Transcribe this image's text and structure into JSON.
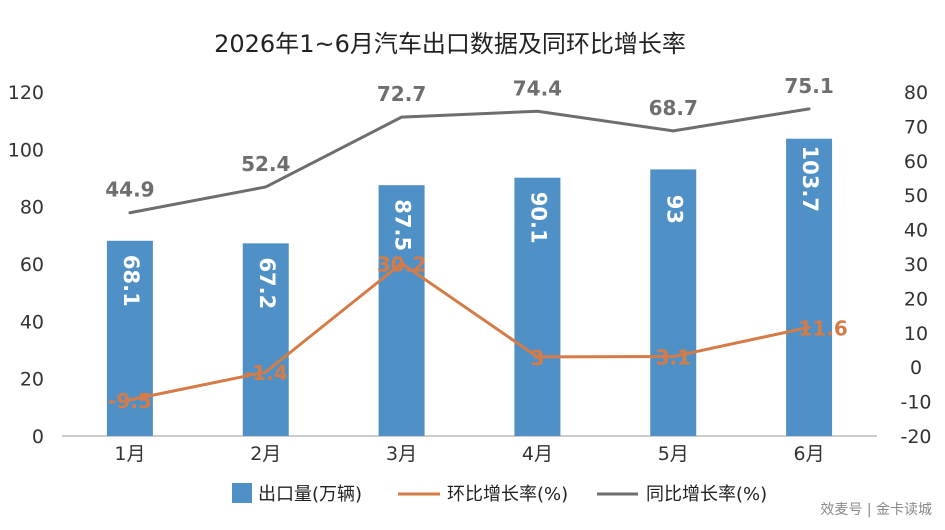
{
  "chart_data": {
    "type": "bar",
    "title": "2026年1~6月汽车出口数据及同环比增长率",
    "categories": [
      "1月",
      "2月",
      "3月",
      "4月",
      "5月",
      "6月"
    ],
    "series": [
      {
        "name": "出口量(万辆)",
        "type": "bar",
        "axis": "left",
        "color": "#4f91c6",
        "values": [
          68.1,
          67.2,
          87.5,
          90.1,
          93,
          103.7
        ],
        "labels": [
          "68.1",
          "67.2",
          "87.5",
          "90.1",
          "93",
          "103.7"
        ]
      },
      {
        "name": "环比增长率(%)",
        "type": "line",
        "axis": "right",
        "color": "#d57b47",
        "values": [
          -9.5,
          -1.4,
          30.2,
          3,
          3.1,
          11.6
        ],
        "labels": [
          "-9.5",
          "-1.4",
          "30.2",
          "3",
          "3.1",
          "11.6"
        ]
      },
      {
        "name": "同比增长率(%)",
        "type": "line",
        "axis": "right",
        "color": "#6e6e6e",
        "values": [
          44.9,
          52.4,
          72.7,
          74.4,
          68.7,
          75.1
        ],
        "labels": [
          "44.9",
          "52.4",
          "72.7",
          "74.4",
          "68.7",
          "75.1"
        ]
      }
    ],
    "y_left": {
      "ylim": [
        0,
        120
      ],
      "ticks": [
        "0",
        "20",
        "40",
        "60",
        "80",
        "100",
        "120"
      ]
    },
    "y_right": {
      "ylim": [
        -20,
        80
      ],
      "ticks": [
        "-20",
        "-10",
        "0",
        "10",
        "20",
        "30",
        "40",
        "50",
        "60",
        "70",
        "80"
      ]
    },
    "grid": false,
    "legend_position": "bottom"
  },
  "watermark": "效麦号 | 金卡读城"
}
